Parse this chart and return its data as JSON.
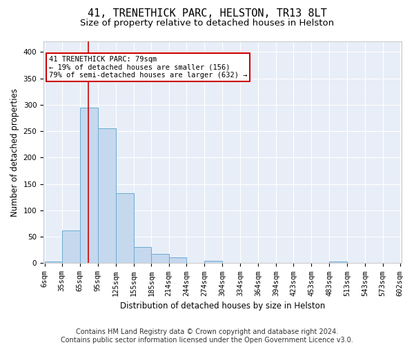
{
  "title": "41, TRENETHICK PARC, HELSTON, TR13 8LT",
  "subtitle": "Size of property relative to detached houses in Helston",
  "xlabel": "Distribution of detached houses by size in Helston",
  "ylabel": "Number of detached properties",
  "bin_labels": [
    "6sqm",
    "35sqm",
    "65sqm",
    "95sqm",
    "125sqm",
    "155sqm",
    "185sqm",
    "214sqm",
    "244sqm",
    "274sqm",
    "304sqm",
    "334sqm",
    "364sqm",
    "394sqm",
    "423sqm",
    "453sqm",
    "483sqm",
    "513sqm",
    "543sqm",
    "573sqm",
    "602sqm"
  ],
  "bar_values": [
    3,
    62,
    295,
    255,
    133,
    30,
    17,
    11,
    0,
    4,
    0,
    0,
    0,
    0,
    0,
    0,
    3,
    0,
    0,
    0,
    0
  ],
  "bar_color": "#c5d8ee",
  "bar_edge_color": "#6aabd2",
  "red_line_x": 79,
  "annotation_text": "41 TRENETHICK PARC: 79sqm\n← 19% of detached houses are smaller (156)\n79% of semi-detached houses are larger (632) →",
  "annotation_box_color": "#ffffff",
  "annotation_box_edge": "#cc0000",
  "footer": "Contains HM Land Registry data © Crown copyright and database right 2024.\nContains public sector information licensed under the Open Government Licence v3.0.",
  "bg_color": "#e8eef8",
  "grid_color": "#ffffff",
  "fig_bg_color": "#ffffff",
  "ylim": [
    0,
    420
  ],
  "yticks": [
    0,
    50,
    100,
    150,
    200,
    250,
    300,
    350,
    400
  ],
  "title_fontsize": 11,
  "subtitle_fontsize": 9.5,
  "axis_label_fontsize": 8.5,
  "tick_fontsize": 7.5,
  "footer_fontsize": 7,
  "annotation_fontsize": 7.5
}
